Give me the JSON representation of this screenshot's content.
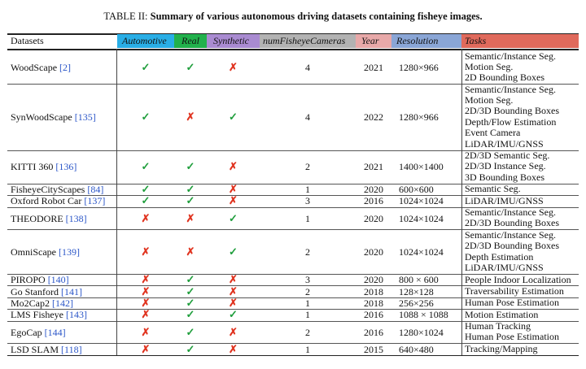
{
  "caption": {
    "label": "TABLE II:",
    "text": "Summary of various autonomous driving datasets containing fisheye images."
  },
  "header": {
    "datasets": "Datasets",
    "automotive": "Automotive",
    "real": "Real",
    "synthetic": "Synthetic",
    "num_cameras": "numFisheyeCameras",
    "year": "Year",
    "resolution": "Resolution",
    "tasks": "Tasks"
  },
  "header_colors": {
    "automotive": "#29aee6",
    "real": "#22b14c",
    "synthetic": "#a98bd1",
    "num_cameras": "#b3b3b3",
    "year": "#e8a9a9",
    "resolution": "#8aa6d6",
    "tasks": "#e06a5c"
  },
  "marks": {
    "yes": "✓",
    "no": "✗"
  },
  "rows": [
    {
      "name": "WoodScape",
      "ref": "[2]",
      "automotive": "yes",
      "real": "yes",
      "synthetic": "no",
      "cameras": "4",
      "year": "2021",
      "resolution": "1280×966",
      "tasks": [
        "Semantic/Instance Seg.",
        "Motion Seg.",
        "2D Bounding Boxes"
      ]
    },
    {
      "name": "SynWoodScape",
      "ref": "[135]",
      "automotive": "yes",
      "real": "no",
      "synthetic": "yes",
      "cameras": "4",
      "year": "2022",
      "resolution": "1280×966",
      "tasks": [
        "Semantic/Instance Seg.",
        "Motion Seg.",
        "2D/3D Bounding Boxes",
        "Depth/Flow Estimation",
        "Event Camera",
        "LiDAR/IMU/GNSS"
      ]
    },
    {
      "name": "KITTI 360",
      "ref": "[136]",
      "automotive": "yes",
      "real": "yes",
      "synthetic": "no",
      "cameras": "2",
      "year": "2021",
      "resolution": "1400×1400",
      "tasks": [
        "2D/3D Semantic Seg.",
        "2D/3D Instance Seg.",
        "3D Bounding Boxes"
      ]
    },
    {
      "name": "FisheyeCityScapes",
      "ref": "[84]",
      "automotive": "yes",
      "real": "yes",
      "synthetic": "no",
      "cameras": "1",
      "year": "2020",
      "resolution": "600×600",
      "tasks": [
        "Semantic Seg."
      ]
    },
    {
      "name": "Oxford Robot Car",
      "ref": "[137]",
      "automotive": "yes",
      "real": "yes",
      "synthetic": "no",
      "cameras": "3",
      "year": "2016",
      "resolution": "1024×1024",
      "tasks": [
        "LiDAR/IMU/GNSS"
      ]
    },
    {
      "name": "THEODORE",
      "ref": "[138]",
      "automotive": "no",
      "real": "no",
      "synthetic": "yes",
      "cameras": "1",
      "year": "2020",
      "resolution": "1024×1024",
      "tasks": [
        "Semantic/Instance Seg.",
        "2D/3D Bounding Boxes"
      ]
    },
    {
      "name": "OmniScape",
      "ref": "[139]",
      "automotive": "no",
      "real": "no",
      "synthetic": "yes",
      "cameras": "2",
      "year": "2020",
      "resolution": "1024×1024",
      "tasks": [
        "Semantic/Instance Seg.",
        "2D/3D Bounding Boxes",
        "Depth Estimation",
        "LiDAR/IMU/GNSS"
      ]
    },
    {
      "name": "PIROPO",
      "ref": "[140]",
      "automotive": "no",
      "real": "yes",
      "synthetic": "no",
      "cameras": "3",
      "year": "2020",
      "resolution": "800 × 600",
      "tasks": [
        "People Indoor Localization"
      ]
    },
    {
      "name": "Go Stanford",
      "ref": "[141]",
      "automotive": "no",
      "real": "yes",
      "synthetic": "no",
      "cameras": "2",
      "year": "2018",
      "resolution": "128×128",
      "tasks": [
        "Traversability Estimation"
      ]
    },
    {
      "name": "Mo2Cap2",
      "ref": "[142]",
      "automotive": "no",
      "real": "yes",
      "synthetic": "no",
      "cameras": "1",
      "year": "2018",
      "resolution": "256×256",
      "tasks": [
        "Human Pose Estimation"
      ]
    },
    {
      "name": "LMS Fisheye",
      "ref": "[143]",
      "automotive": "no",
      "real": "yes",
      "synthetic": "yes",
      "cameras": "1",
      "year": "2016",
      "resolution": "1088 × 1088",
      "tasks": [
        "Motion Estimation"
      ]
    },
    {
      "name": "EgoCap",
      "ref": "[144]",
      "automotive": "no",
      "real": "yes",
      "synthetic": "no",
      "cameras": "2",
      "year": "2016",
      "resolution": "1280×1024",
      "tasks": [
        "Human Tracking",
        "Human Pose Estimation"
      ]
    },
    {
      "name": "LSD SLAM",
      "ref": "[118]",
      "automotive": "no",
      "real": "yes",
      "synthetic": "no",
      "cameras": "1",
      "year": "2015",
      "resolution": "640×480",
      "tasks": [
        "Tracking/Mapping"
      ]
    }
  ]
}
